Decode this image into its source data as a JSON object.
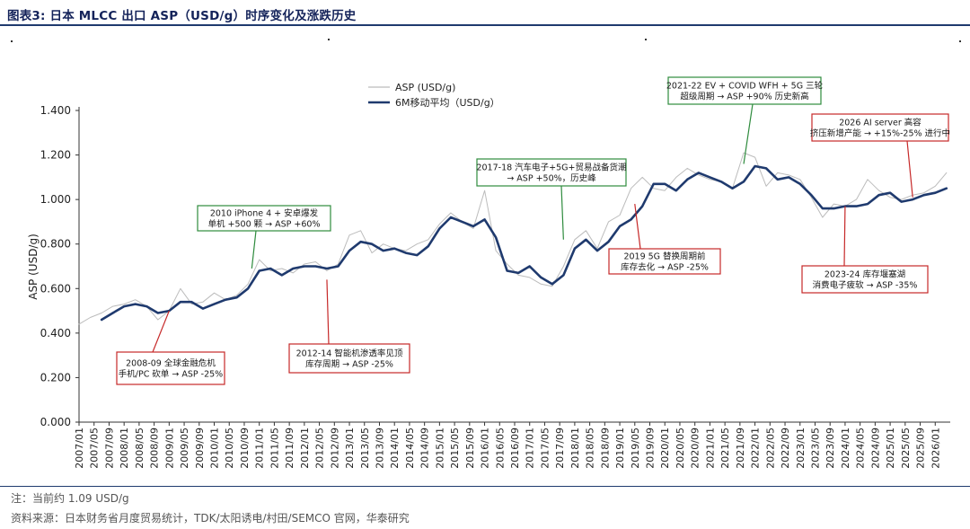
{
  "header": {
    "title": "图表3:  日本 MLCC 出口 ASP（USD/g）时序变化及涨跌历史"
  },
  "footer": {
    "note": "注：当前约 1.09 USD/g",
    "source": "资料来源：日本财务省月度贸易统计，TDK/太阳诱电/村田/SEMCO 官网，华泰研究"
  },
  "colors": {
    "raw": "#bcbcbc",
    "ma": "#1f3a6e",
    "green": "#2e8b3d",
    "red": "#c62828",
    "title": "#14235a"
  },
  "chart_data": {
    "type": "line",
    "title": "",
    "xlabel": "",
    "ylabel": "ASP (USD/g)",
    "ylim": [
      0,
      1.4
    ],
    "yticks": [
      0,
      0.2,
      0.4,
      0.6,
      0.8,
      1.0,
      1.2,
      1.4
    ],
    "ytick_labels": [
      "0.000",
      "0.200",
      "0.400",
      "0.600",
      "0.800",
      "1.000",
      "1.200",
      "1.400"
    ],
    "xlim": [
      "2007-01",
      "2026-05"
    ],
    "xtick_labels": [
      "2007/01",
      "2007/05",
      "2007/09",
      "2008/01",
      "2008/05",
      "2008/09",
      "2009/01",
      "2009/05",
      "2009/09",
      "2010/01",
      "2010/05",
      "2010/09",
      "2011/01",
      "2011/05",
      "2011/09",
      "2012/01",
      "2012/05",
      "2012/09",
      "2013/01",
      "2013/05",
      "2013/09",
      "2014/01",
      "2014/05",
      "2014/09",
      "2015/01",
      "2015/05",
      "2015/09",
      "2016/01",
      "2016/05",
      "2016/09",
      "2017/01",
      "2017/05",
      "2017/09",
      "2018/01",
      "2018/05",
      "2018/09",
      "2019/01",
      "2019/05",
      "2019/09",
      "2020/01",
      "2020/05",
      "2020/09",
      "2021/01",
      "2021/05",
      "2021/09",
      "2022/01",
      "2022/05",
      "2022/09",
      "2023/01",
      "2023/05",
      "2023/09",
      "2024/01",
      "2024/05",
      "2024/09",
      "2025/01",
      "2025/05",
      "2025/09",
      "2026/01"
    ],
    "grid": false,
    "legend_position": "top-center",
    "series": [
      {
        "name": "ASP (USD/g)",
        "style": "thin-grey",
        "points": [
          [
            "2007-01",
            0.44
          ],
          [
            "2007-04",
            0.47
          ],
          [
            "2007-07",
            0.49
          ],
          [
            "2007-10",
            0.52
          ],
          [
            "2008-01",
            0.53
          ],
          [
            "2008-04",
            0.55
          ],
          [
            "2008-07",
            0.52
          ],
          [
            "2008-10",
            0.46
          ],
          [
            "2009-01",
            0.5
          ],
          [
            "2009-04",
            0.6
          ],
          [
            "2009-07",
            0.53
          ],
          [
            "2009-10",
            0.54
          ],
          [
            "2010-01",
            0.58
          ],
          [
            "2010-04",
            0.55
          ],
          [
            "2010-07",
            0.57
          ],
          [
            "2010-10",
            0.62
          ],
          [
            "2011-01",
            0.73
          ],
          [
            "2011-04",
            0.68
          ],
          [
            "2011-07",
            0.69
          ],
          [
            "2011-10",
            0.67
          ],
          [
            "2012-01",
            0.71
          ],
          [
            "2012-04",
            0.72
          ],
          [
            "2012-07",
            0.68
          ],
          [
            "2012-10",
            0.71
          ],
          [
            "2013-01",
            0.84
          ],
          [
            "2013-04",
            0.86
          ],
          [
            "2013-07",
            0.76
          ],
          [
            "2013-10",
            0.8
          ],
          [
            "2014-01",
            0.78
          ],
          [
            "2014-04",
            0.77
          ],
          [
            "2014-07",
            0.8
          ],
          [
            "2014-10",
            0.82
          ],
          [
            "2015-01",
            0.89
          ],
          [
            "2015-04",
            0.94
          ],
          [
            "2015-07",
            0.9
          ],
          [
            "2015-10",
            0.87
          ],
          [
            "2016-01",
            1.04
          ],
          [
            "2016-04",
            0.77
          ],
          [
            "2016-07",
            0.71
          ],
          [
            "2016-10",
            0.66
          ],
          [
            "2017-01",
            0.65
          ],
          [
            "2017-04",
            0.62
          ],
          [
            "2017-07",
            0.61
          ],
          [
            "2017-10",
            0.7
          ],
          [
            "2018-01",
            0.82
          ],
          [
            "2018-04",
            0.86
          ],
          [
            "2018-07",
            0.78
          ],
          [
            "2018-10",
            0.9
          ],
          [
            "2019-01",
            0.93
          ],
          [
            "2019-04",
            1.05
          ],
          [
            "2019-07",
            1.1
          ],
          [
            "2019-10",
            1.05
          ],
          [
            "2020-01",
            1.04
          ],
          [
            "2020-04",
            1.1
          ],
          [
            "2020-07",
            1.14
          ],
          [
            "2020-10",
            1.11
          ],
          [
            "2021-01",
            1.09
          ],
          [
            "2021-04",
            1.08
          ],
          [
            "2021-07",
            1.05
          ],
          [
            "2021-10",
            1.21
          ],
          [
            "2022-01",
            1.19
          ],
          [
            "2022-04",
            1.06
          ],
          [
            "2022-07",
            1.12
          ],
          [
            "2022-10",
            1.11
          ],
          [
            "2023-01",
            1.09
          ],
          [
            "2023-04",
            1.01
          ],
          [
            "2023-07",
            0.92
          ],
          [
            "2023-10",
            0.98
          ],
          [
            "2024-01",
            0.97
          ],
          [
            "2024-04",
            1.0
          ],
          [
            "2024-07",
            1.09
          ],
          [
            "2024-10",
            1.04
          ],
          [
            "2025-01",
            1.01
          ],
          [
            "2025-04",
            1.0
          ],
          [
            "2025-07",
            1.02
          ],
          [
            "2025-10",
            1.03
          ],
          [
            "2026-01",
            1.06
          ],
          [
            "2026-04",
            1.12
          ]
        ]
      },
      {
        "name": "6M移动平均（USD/g）",
        "style": "thick-navy",
        "points": [
          [
            "2007-07",
            0.46
          ],
          [
            "2007-10",
            0.49
          ],
          [
            "2008-01",
            0.52
          ],
          [
            "2008-04",
            0.53
          ],
          [
            "2008-07",
            0.52
          ],
          [
            "2008-10",
            0.49
          ],
          [
            "2009-01",
            0.5
          ],
          [
            "2009-04",
            0.54
          ],
          [
            "2009-07",
            0.54
          ],
          [
            "2009-10",
            0.51
          ],
          [
            "2010-01",
            0.53
          ],
          [
            "2010-04",
            0.55
          ],
          [
            "2010-07",
            0.56
          ],
          [
            "2010-10",
            0.6
          ],
          [
            "2011-01",
            0.68
          ],
          [
            "2011-04",
            0.69
          ],
          [
            "2011-07",
            0.66
          ],
          [
            "2011-10",
            0.69
          ],
          [
            "2012-01",
            0.7
          ],
          [
            "2012-04",
            0.7
          ],
          [
            "2012-07",
            0.69
          ],
          [
            "2012-10",
            0.7
          ],
          [
            "2013-01",
            0.77
          ],
          [
            "2013-04",
            0.81
          ],
          [
            "2013-07",
            0.8
          ],
          [
            "2013-10",
            0.77
          ],
          [
            "2014-01",
            0.78
          ],
          [
            "2014-04",
            0.76
          ],
          [
            "2014-07",
            0.75
          ],
          [
            "2014-10",
            0.79
          ],
          [
            "2015-01",
            0.87
          ],
          [
            "2015-04",
            0.92
          ],
          [
            "2015-07",
            0.9
          ],
          [
            "2015-10",
            0.88
          ],
          [
            "2016-01",
            0.91
          ],
          [
            "2016-04",
            0.83
          ],
          [
            "2016-07",
            0.68
          ],
          [
            "2016-10",
            0.67
          ],
          [
            "2017-01",
            0.7
          ],
          [
            "2017-04",
            0.65
          ],
          [
            "2017-07",
            0.62
          ],
          [
            "2017-10",
            0.66
          ],
          [
            "2018-01",
            0.78
          ],
          [
            "2018-04",
            0.82
          ],
          [
            "2018-07",
            0.77
          ],
          [
            "2018-10",
            0.81
          ],
          [
            "2019-01",
            0.88
          ],
          [
            "2019-04",
            0.91
          ],
          [
            "2019-07",
            0.97
          ],
          [
            "2019-10",
            1.07
          ],
          [
            "2020-01",
            1.07
          ],
          [
            "2020-04",
            1.04
          ],
          [
            "2020-07",
            1.09
          ],
          [
            "2020-10",
            1.12
          ],
          [
            "2021-01",
            1.1
          ],
          [
            "2021-04",
            1.08
          ],
          [
            "2021-07",
            1.05
          ],
          [
            "2021-10",
            1.08
          ],
          [
            "2022-01",
            1.15
          ],
          [
            "2022-04",
            1.14
          ],
          [
            "2022-07",
            1.09
          ],
          [
            "2022-10",
            1.1
          ],
          [
            "2023-01",
            1.07
          ],
          [
            "2023-04",
            1.02
          ],
          [
            "2023-07",
            0.96
          ],
          [
            "2023-10",
            0.96
          ],
          [
            "2024-01",
            0.97
          ],
          [
            "2024-04",
            0.97
          ],
          [
            "2024-07",
            0.98
          ],
          [
            "2024-10",
            1.02
          ],
          [
            "2025-01",
            1.03
          ],
          [
            "2025-04",
            0.99
          ],
          [
            "2025-07",
            1.0
          ],
          [
            "2025-10",
            1.02
          ],
          [
            "2026-01",
            1.03
          ],
          [
            "2026-04",
            1.05
          ]
        ]
      }
    ],
    "annotations": [
      {
        "lines": [
          "2008-09 全球金融危机",
          "手机/PC 砍单 → ASP -25%"
        ],
        "color": "red",
        "anchor": [
          "2009-01",
          0.5
        ]
      },
      {
        "lines": [
          "2010 iPhone 4 + 安卓爆发",
          "单机 +500 颗 → ASP +60%"
        ],
        "color": "green",
        "anchor": [
          "2010-11",
          0.69
        ]
      },
      {
        "lines": [
          "2012-14 智能机渗透率见顶",
          "库存周期 → ASP -25%"
        ],
        "color": "red",
        "anchor": [
          "2012-07",
          0.64
        ]
      },
      {
        "lines": [
          "2017-18 汽车电子+5G+贸易战备货潮",
          "→ ASP +50%，历史峰"
        ],
        "color": "green",
        "anchor": [
          "2017-10",
          0.82
        ]
      },
      {
        "lines": [
          "2019 5G 替换周期前",
          "库存去化 → ASP -25%"
        ],
        "color": "red",
        "anchor": [
          "2019-05",
          0.98
        ]
      },
      {
        "lines": [
          "2021-22 EV + COVID WFH + 5G 三轮",
          "超级周期 → ASP +90% 历史新高"
        ],
        "color": "green",
        "anchor": [
          "2021-10",
          1.16
        ]
      },
      {
        "lines": [
          "2023-24 库存堰塞湖",
          "消费电子疲软 → ASP -35%"
        ],
        "color": "red",
        "anchor": [
          "2024-01",
          0.97
        ]
      },
      {
        "lines": [
          "2026 AI server 高容",
          "挤压新增产能 → +15%-25% 进行中"
        ],
        "color": "red",
        "anchor": [
          "2025-07",
          1.01
        ]
      }
    ]
  }
}
